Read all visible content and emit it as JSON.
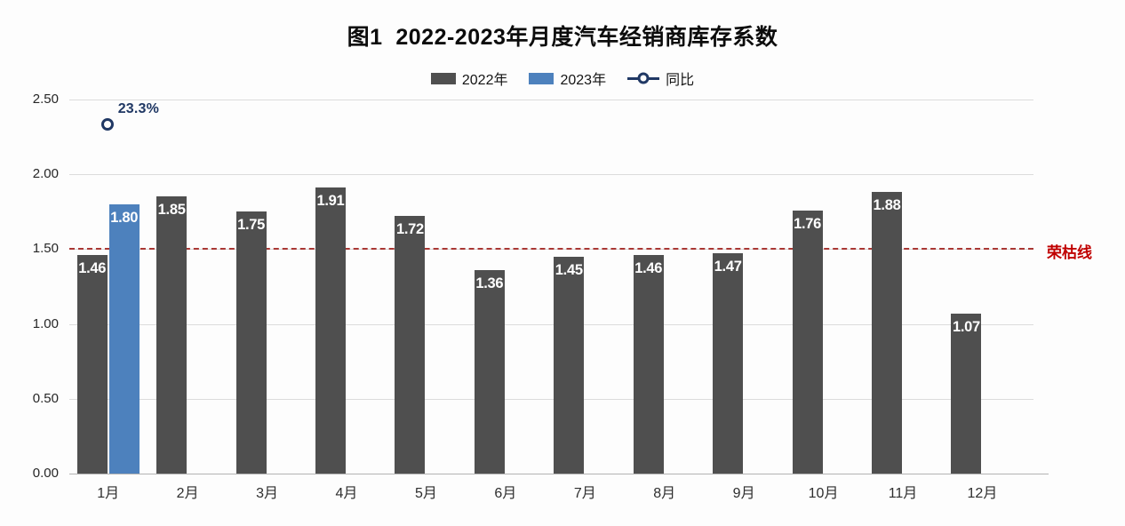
{
  "title": "图1  2022-2023年月度汽车经销商库存系数",
  "chart_data": {
    "type": "bar",
    "title": "图1  2022-2023年月度汽车经销商库存系数",
    "categories": [
      "1月",
      "2月",
      "3月",
      "4月",
      "5月",
      "6月",
      "7月",
      "8月",
      "9月",
      "10月",
      "11月",
      "12月"
    ],
    "series": [
      {
        "name": "2022年",
        "type": "bar",
        "color": "#4f4f4f",
        "values": [
          1.46,
          1.85,
          1.75,
          1.91,
          1.72,
          1.36,
          1.45,
          1.46,
          1.47,
          1.76,
          1.88,
          1.07
        ]
      },
      {
        "name": "2023年",
        "type": "bar",
        "color": "#4d81bd",
        "values": [
          1.8,
          null,
          null,
          null,
          null,
          null,
          null,
          null,
          null,
          null,
          null,
          null
        ]
      },
      {
        "name": "同比",
        "type": "scatter",
        "color": "#203864",
        "points": [
          {
            "category": "1月",
            "label": "23.3%",
            "value_on_left_axis": 2.33
          }
        ]
      }
    ],
    "xlabel": "",
    "ylabel": "",
    "ylim": [
      0,
      2.5
    ],
    "yticks": [
      {
        "value": 0.0,
        "label": "0.00"
      },
      {
        "value": 0.5,
        "label": "0.50"
      },
      {
        "value": 1.0,
        "label": "1.00"
      },
      {
        "value": 1.5,
        "label": "1.50"
      },
      {
        "value": 2.0,
        "label": "2.00"
      },
      {
        "value": 2.5,
        "label": "2.50"
      }
    ],
    "grid": "horizontal",
    "legend_position": "top",
    "reference_line": {
      "value": 1.5,
      "label": "荣枯线",
      "color": "#c00000",
      "line_color": "#a93734",
      "style": "dashed"
    },
    "bar_label_color": "#ffffff"
  }
}
